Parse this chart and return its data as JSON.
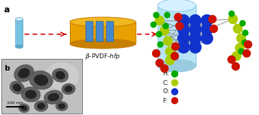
{
  "fig_width": 3.78,
  "fig_height": 1.68,
  "dpi": 100,
  "bg_color": "#ffffff",
  "label_a": "a",
  "label_b": "b",
  "arrow_color": "#cc0000",
  "sio2_body_color": "#7cc8e8",
  "sio2_top_color": "#aaddf5",
  "sio2_stripe_color": "#5aaac8",
  "gold_body_color": "#e8a000",
  "gold_top_color": "#f0b820",
  "gold_edge_color": "#c87800",
  "pvdf_rect_color": "#4488cc",
  "pvdf_rect_edge": "#2266aa",
  "big_cyl_body": "#b8e4f5",
  "big_cyl_top": "#d5f0ff",
  "big_cyl_edge": "#88c8e0",
  "atom_H_color": "#00aa00",
  "atom_C_color": "#aacc00",
  "atom_O_color": "#1133cc",
  "atom_F_color": "#cc1100",
  "legend_items": [
    {
      "label": "H:",
      "color": "#00aa00"
    },
    {
      "label": "C:",
      "color": "#aacc00"
    },
    {
      "label": "O:",
      "color": "#1133cc"
    },
    {
      "label": "F:",
      "color": "#cc1100"
    }
  ],
  "scale_bar_text": "100 nm",
  "tem_bg_color": "#b8b8b8",
  "tem_particle_color": "#505050",
  "tem_particle_dark": "#282828"
}
